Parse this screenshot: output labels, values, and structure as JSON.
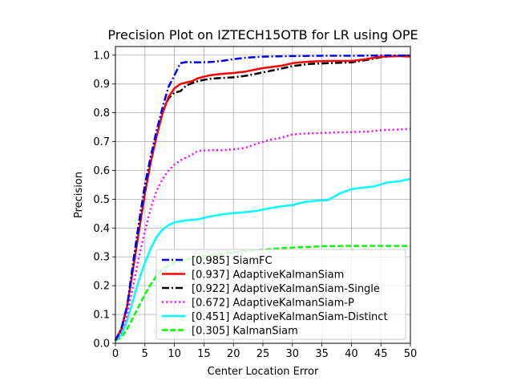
{
  "chart_data": {
    "type": "line",
    "title": "Precision Plot on IZTECH15OTB for LR using OPE",
    "xlabel": "Center Location Error",
    "ylabel": "Precision",
    "xlim": [
      0,
      50
    ],
    "ylim": [
      0,
      1.03
    ],
    "xticks": [
      0,
      5,
      10,
      15,
      20,
      25,
      30,
      35,
      40,
      45,
      50
    ],
    "xtick_labels": [
      "0",
      "5",
      "10",
      "15",
      "20",
      "25",
      "30",
      "35",
      "40",
      "45",
      "50"
    ],
    "yticks": [
      0,
      0.1,
      0.2,
      0.3,
      0.4,
      0.5,
      0.6,
      0.7,
      0.8,
      0.9,
      1.0
    ],
    "ytick_labels": [
      "0.0",
      "0.1",
      "0.2",
      "0.3",
      "0.4",
      "0.5",
      "0.6",
      "0.7",
      "0.8",
      "0.9",
      "1.0"
    ],
    "grid": true,
    "legend_position": "bottom-right",
    "series": [
      {
        "name": "[0.985] SiamFC",
        "color": "#0000ff",
        "style": "dashdot",
        "points": [
          [
            0,
            0.01
          ],
          [
            1,
            0.05
          ],
          [
            2,
            0.13
          ],
          [
            3,
            0.27
          ],
          [
            4,
            0.41
          ],
          [
            5,
            0.54
          ],
          [
            6,
            0.65
          ],
          [
            7,
            0.74
          ],
          [
            8,
            0.82
          ],
          [
            9,
            0.89
          ],
          [
            10,
            0.93
          ],
          [
            11,
            0.972
          ],
          [
            12,
            0.976
          ],
          [
            14,
            0.975
          ],
          [
            16,
            0.976
          ],
          [
            18,
            0.98
          ],
          [
            20,
            0.986
          ],
          [
            22,
            0.991
          ],
          [
            25,
            0.995
          ],
          [
            30,
            0.997
          ],
          [
            35,
            0.998
          ],
          [
            40,
            0.998
          ],
          [
            45,
            0.999
          ],
          [
            50,
            0.999
          ]
        ]
      },
      {
        "name": "[0.937] AdaptiveKalmanSiam",
        "color": "#ff0000",
        "style": "solid",
        "points": [
          [
            0,
            0.01
          ],
          [
            1,
            0.05
          ],
          [
            2,
            0.13
          ],
          [
            3,
            0.26
          ],
          [
            4,
            0.39
          ],
          [
            5,
            0.52
          ],
          [
            6,
            0.63
          ],
          [
            7,
            0.72
          ],
          [
            8,
            0.8
          ],
          [
            9,
            0.855
          ],
          [
            10,
            0.885
          ],
          [
            11,
            0.9
          ],
          [
            12,
            0.905
          ],
          [
            13,
            0.91
          ],
          [
            14,
            0.92
          ],
          [
            15,
            0.925
          ],
          [
            16,
            0.93
          ],
          [
            18,
            0.935
          ],
          [
            20,
            0.938
          ],
          [
            22,
            0.943
          ],
          [
            25,
            0.955
          ],
          [
            28,
            0.963
          ],
          [
            30,
            0.972
          ],
          [
            33,
            0.978
          ],
          [
            36,
            0.98
          ],
          [
            40,
            0.98
          ],
          [
            42,
            0.985
          ],
          [
            45,
            0.995
          ],
          [
            48,
            0.997
          ],
          [
            50,
            0.995
          ]
        ]
      },
      {
        "name": "[0.922] AdaptiveKalmanSiam-Single",
        "color": "#000000",
        "style": "dashdot",
        "points": [
          [
            0,
            0.01
          ],
          [
            1,
            0.05
          ],
          [
            2,
            0.13
          ],
          [
            3,
            0.28
          ],
          [
            4,
            0.42
          ],
          [
            5,
            0.55
          ],
          [
            6,
            0.65
          ],
          [
            7,
            0.73
          ],
          [
            8,
            0.8
          ],
          [
            9,
            0.85
          ],
          [
            10,
            0.87
          ],
          [
            11,
            0.875
          ],
          [
            12,
            0.895
          ],
          [
            14,
            0.91
          ],
          [
            16,
            0.918
          ],
          [
            18,
            0.921
          ],
          [
            20,
            0.923
          ],
          [
            22,
            0.928
          ],
          [
            25,
            0.94
          ],
          [
            28,
            0.953
          ],
          [
            30,
            0.962
          ],
          [
            33,
            0.97
          ],
          [
            36,
            0.972
          ],
          [
            40,
            0.975
          ],
          [
            43,
            0.985
          ],
          [
            45,
            0.993
          ],
          [
            48,
            0.998
          ],
          [
            50,
            0.998
          ]
        ]
      },
      {
        "name": "[0.672] AdaptiveKalmanSiam-P",
        "color": "#ff00ff",
        "style": "dotted",
        "points": [
          [
            0,
            0.01
          ],
          [
            1,
            0.04
          ],
          [
            2,
            0.1
          ],
          [
            3,
            0.2
          ],
          [
            4,
            0.3
          ],
          [
            5,
            0.39
          ],
          [
            6,
            0.47
          ],
          [
            7,
            0.53
          ],
          [
            8,
            0.57
          ],
          [
            9,
            0.6
          ],
          [
            10,
            0.62
          ],
          [
            11,
            0.635
          ],
          [
            12,
            0.645
          ],
          [
            13,
            0.655
          ],
          [
            14,
            0.668
          ],
          [
            16,
            0.67
          ],
          [
            18,
            0.67
          ],
          [
            20,
            0.673
          ],
          [
            22,
            0.678
          ],
          [
            24,
            0.693
          ],
          [
            26,
            0.705
          ],
          [
            28,
            0.713
          ],
          [
            30,
            0.725
          ],
          [
            32,
            0.728
          ],
          [
            35,
            0.73
          ],
          [
            38,
            0.732
          ],
          [
            40,
            0.733
          ],
          [
            43,
            0.735
          ],
          [
            45,
            0.74
          ],
          [
            48,
            0.742
          ],
          [
            50,
            0.744
          ]
        ]
      },
      {
        "name": "[0.451] AdaptiveKalmanSiam-Distinct",
        "color": "#00ffff",
        "style": "solid",
        "points": [
          [
            0,
            0.01
          ],
          [
            1,
            0.03
          ],
          [
            2,
            0.08
          ],
          [
            3,
            0.15
          ],
          [
            4,
            0.22
          ],
          [
            5,
            0.28
          ],
          [
            6,
            0.33
          ],
          [
            7,
            0.37
          ],
          [
            8,
            0.395
          ],
          [
            9,
            0.41
          ],
          [
            10,
            0.42
          ],
          [
            12,
            0.427
          ],
          [
            14,
            0.43
          ],
          [
            16,
            0.44
          ],
          [
            18,
            0.447
          ],
          [
            20,
            0.452
          ],
          [
            22,
            0.455
          ],
          [
            24,
            0.46
          ],
          [
            26,
            0.468
          ],
          [
            28,
            0.475
          ],
          [
            30,
            0.48
          ],
          [
            32,
            0.49
          ],
          [
            34,
            0.495
          ],
          [
            36,
            0.497
          ],
          [
            38,
            0.52
          ],
          [
            40,
            0.535
          ],
          [
            42,
            0.54
          ],
          [
            44,
            0.545
          ],
          [
            46,
            0.558
          ],
          [
            48,
            0.562
          ],
          [
            50,
            0.57
          ]
        ]
      },
      {
        "name": "[0.305] KalmanSiam",
        "color": "#00ff00",
        "style": "dashed",
        "points": [
          [
            0,
            0.01
          ],
          [
            1,
            0.02
          ],
          [
            2,
            0.05
          ],
          [
            3,
            0.09
          ],
          [
            4,
            0.13
          ],
          [
            5,
            0.17
          ],
          [
            6,
            0.205
          ],
          [
            7,
            0.235
          ],
          [
            8,
            0.255
          ],
          [
            9,
            0.27
          ],
          [
            10,
            0.28
          ],
          [
            12,
            0.29
          ],
          [
            14,
            0.3
          ],
          [
            16,
            0.305
          ],
          [
            18,
            0.31
          ],
          [
            20,
            0.315
          ],
          [
            22,
            0.32
          ],
          [
            25,
            0.325
          ],
          [
            28,
            0.33
          ],
          [
            30,
            0.332
          ],
          [
            33,
            0.335
          ],
          [
            35,
            0.337
          ],
          [
            40,
            0.338
          ],
          [
            45,
            0.338
          ],
          [
            50,
            0.338
          ]
        ]
      }
    ]
  }
}
